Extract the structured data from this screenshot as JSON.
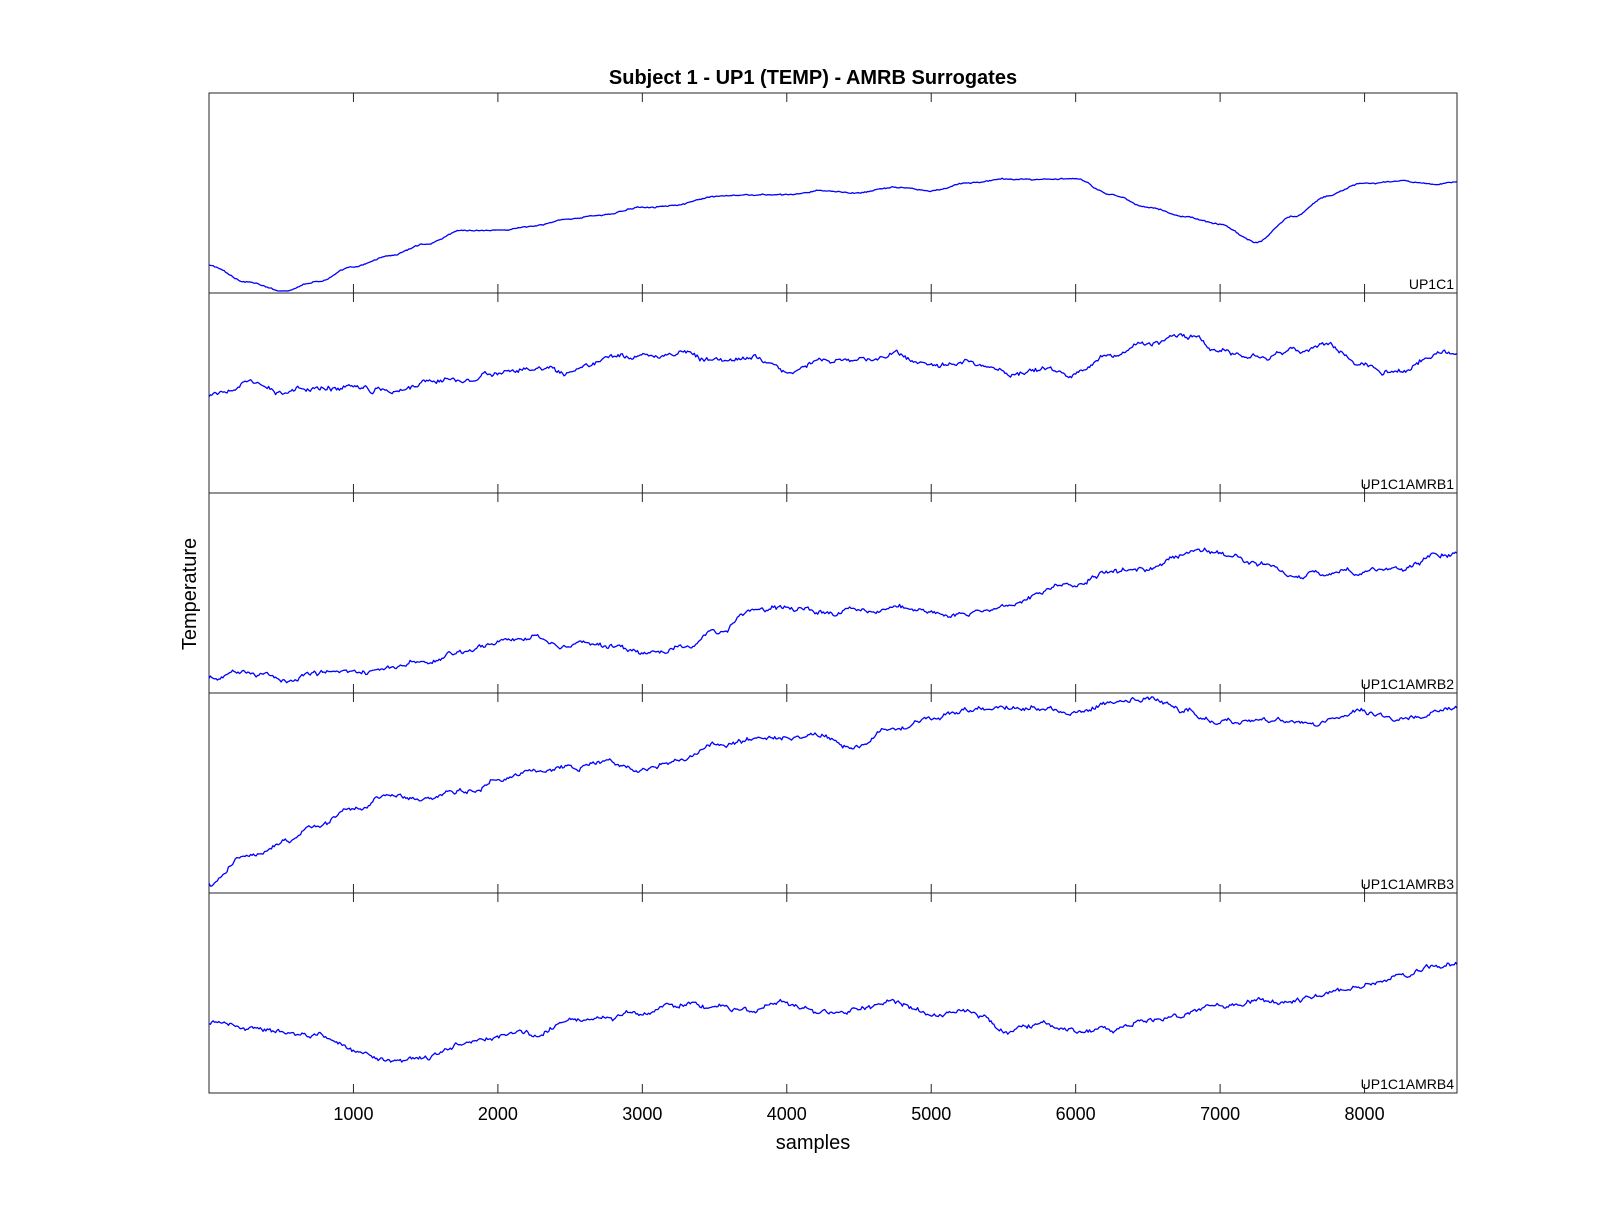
{
  "chart_data": {
    "type": "line",
    "title": "Subject 1 - UP1 (TEMP) - AMRB Surrogates",
    "xlabel": "samples",
    "ylabel": "Temperature",
    "xlim": [
      0,
      8640
    ],
    "xticks": [
      1000,
      2000,
      3000,
      4000,
      5000,
      6000,
      7000,
      8000
    ],
    "xtick_labels": [
      "1000",
      "2000",
      "3000",
      "4000",
      "5000",
      "6000",
      "7000",
      "8000"
    ],
    "grid": false,
    "line_color": "#0000ff",
    "ylim": [
      0,
      1
    ],
    "series": [
      {
        "name": "UP1C1",
        "x": [
          0,
          250,
          500,
          750,
          1000,
          1250,
          1500,
          1750,
          2000,
          2250,
          2500,
          2750,
          3000,
          3250,
          3500,
          3750,
          4000,
          4250,
          4500,
          4750,
          5000,
          5250,
          5500,
          5750,
          6000,
          6250,
          6500,
          6750,
          7000,
          7250,
          7500,
          7750,
          8000,
          8250,
          8500,
          8640
        ],
        "y": [
          0.13,
          0.05,
          0.0,
          0.05,
          0.12,
          0.18,
          0.24,
          0.31,
          0.31,
          0.33,
          0.37,
          0.39,
          0.43,
          0.44,
          0.48,
          0.49,
          0.49,
          0.51,
          0.5,
          0.53,
          0.51,
          0.55,
          0.57,
          0.57,
          0.57,
          0.49,
          0.43,
          0.38,
          0.34,
          0.25,
          0.38,
          0.49,
          0.55,
          0.56,
          0.54,
          0.56
        ]
      },
      {
        "name": "UP1C1AMRB1",
        "x": [
          0,
          250,
          500,
          750,
          1000,
          1250,
          1500,
          1750,
          2000,
          2250,
          2500,
          2750,
          3000,
          3250,
          3500,
          3750,
          4000,
          4250,
          4500,
          4750,
          5000,
          5250,
          5500,
          5750,
          6000,
          6250,
          6500,
          6750,
          7000,
          7250,
          7500,
          7750,
          8000,
          8250,
          8500,
          8640
        ],
        "y": [
          0.48,
          0.55,
          0.5,
          0.52,
          0.54,
          0.52,
          0.56,
          0.58,
          0.6,
          0.62,
          0.59,
          0.67,
          0.69,
          0.71,
          0.67,
          0.68,
          0.62,
          0.67,
          0.66,
          0.69,
          0.63,
          0.66,
          0.61,
          0.62,
          0.59,
          0.7,
          0.75,
          0.79,
          0.71,
          0.69,
          0.71,
          0.74,
          0.64,
          0.61,
          0.71,
          0.7
        ]
      },
      {
        "name": "UP1C1AMRB2",
        "x": [
          0,
          250,
          500,
          750,
          1000,
          1250,
          1500,
          1750,
          2000,
          2250,
          2500,
          2750,
          3000,
          3250,
          3500,
          3750,
          4000,
          4250,
          4500,
          4750,
          5000,
          5250,
          5500,
          5750,
          6000,
          6250,
          6500,
          6750,
          7000,
          7250,
          7500,
          7750,
          8000,
          8250,
          8500,
          8640
        ],
        "y": [
          0.06,
          0.1,
          0.06,
          0.1,
          0.11,
          0.11,
          0.15,
          0.2,
          0.26,
          0.28,
          0.24,
          0.23,
          0.19,
          0.21,
          0.29,
          0.4,
          0.43,
          0.4,
          0.41,
          0.43,
          0.39,
          0.4,
          0.44,
          0.5,
          0.56,
          0.61,
          0.61,
          0.7,
          0.71,
          0.65,
          0.59,
          0.6,
          0.61,
          0.63,
          0.7,
          0.7
        ]
      },
      {
        "name": "UP1C1AMRB3",
        "x": [
          0,
          250,
          500,
          750,
          1000,
          1250,
          1500,
          1750,
          2000,
          2250,
          2500,
          2750,
          3000,
          3250,
          3500,
          3750,
          4000,
          4250,
          4500,
          4750,
          5000,
          5250,
          5500,
          5750,
          6000,
          6250,
          6500,
          6750,
          7000,
          7250,
          7500,
          7750,
          8000,
          8250,
          8500,
          8640
        ],
        "y": [
          0.03,
          0.17,
          0.25,
          0.33,
          0.42,
          0.49,
          0.46,
          0.5,
          0.57,
          0.62,
          0.64,
          0.67,
          0.61,
          0.66,
          0.74,
          0.77,
          0.78,
          0.8,
          0.74,
          0.83,
          0.89,
          0.92,
          0.94,
          0.94,
          0.92,
          0.96,
          0.98,
          0.92,
          0.86,
          0.87,
          0.86,
          0.86,
          0.91,
          0.87,
          0.92,
          0.95
        ]
      },
      {
        "name": "UP1C1AMRB4",
        "x": [
          0,
          250,
          500,
          750,
          1000,
          1250,
          1500,
          1750,
          2000,
          2250,
          2500,
          2750,
          3000,
          3250,
          3500,
          3750,
          4000,
          4250,
          4500,
          4750,
          5000,
          5250,
          5500,
          5750,
          6000,
          6250,
          6500,
          6750,
          7000,
          7250,
          7500,
          7750,
          8000,
          8250,
          8500,
          8640
        ],
        "y": [
          0.34,
          0.33,
          0.3,
          0.28,
          0.21,
          0.17,
          0.16,
          0.25,
          0.29,
          0.29,
          0.37,
          0.36,
          0.41,
          0.44,
          0.43,
          0.41,
          0.44,
          0.39,
          0.42,
          0.46,
          0.4,
          0.41,
          0.32,
          0.33,
          0.31,
          0.31,
          0.36,
          0.39,
          0.44,
          0.45,
          0.46,
          0.49,
          0.55,
          0.6,
          0.63,
          0.64
        ]
      }
    ]
  }
}
